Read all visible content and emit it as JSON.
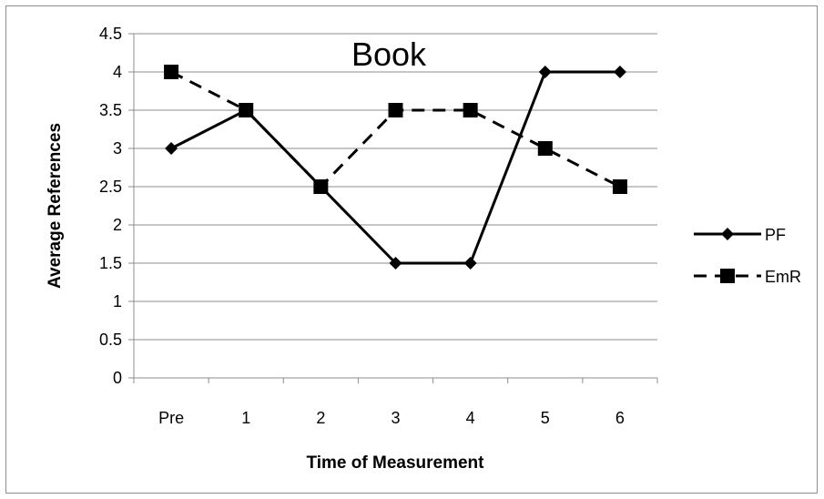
{
  "chart_data": {
    "type": "line",
    "title": "Book",
    "xlabel": "Time of Measurement",
    "ylabel": "Average References",
    "categories": [
      "Pre",
      "1",
      "2",
      "3",
      "4",
      "5",
      "6"
    ],
    "ylim": [
      0,
      4.5
    ],
    "yticks": [
      "0",
      "0.5",
      "1",
      "1.5",
      "2",
      "2.5",
      "3",
      "3.5",
      "4",
      "4.5"
    ],
    "grid": "horizontal",
    "legend_position": "right",
    "series": [
      {
        "name": "PF",
        "values": [
          3,
          3.5,
          2.5,
          1.5,
          1.5,
          4,
          4
        ],
        "line_style": "solid",
        "marker": "diamond",
        "color": "#000000"
      },
      {
        "name": "EmR",
        "values": [
          4,
          3.5,
          2.5,
          3.5,
          3.5,
          3,
          2.5
        ],
        "line_style": "dashed",
        "marker": "square",
        "color": "#000000"
      }
    ]
  }
}
